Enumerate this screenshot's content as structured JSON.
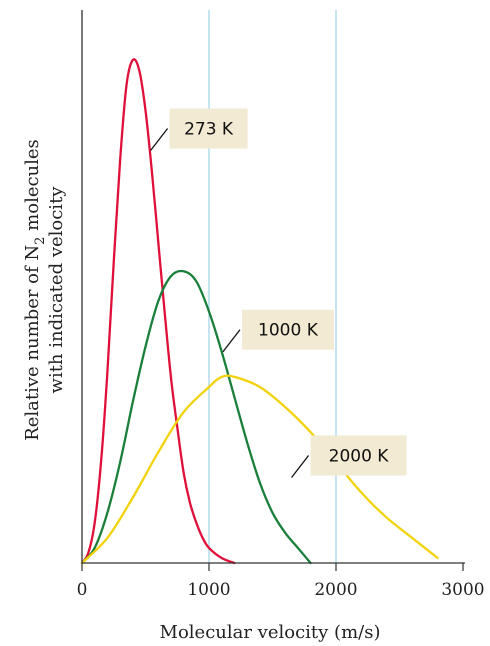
{
  "chart_data": {
    "type": "line",
    "xlabel": "Molecular velocity (m/s)",
    "ylabel": {
      "line1_pre": "Relative number of N",
      "line1_sub": "2",
      "line1_post": " molecules",
      "line2": "with indicated velocity"
    },
    "xlim": [
      0,
      3000
    ],
    "ylim": [
      0,
      1
    ],
    "x_ticks": [
      0,
      1000,
      2000,
      3000
    ],
    "x_tick_labels": [
      "0",
      "1000",
      "2000",
      "3000"
    ],
    "gridlines_x": [
      1000,
      2000
    ],
    "grid_color": "#9fd3e8",
    "series": [
      {
        "name": "273 K",
        "color": "#e0103a",
        "points": [
          [
            0,
            0
          ],
          [
            50,
            0.02
          ],
          [
            100,
            0.08
          ],
          [
            150,
            0.2
          ],
          [
            200,
            0.38
          ],
          [
            250,
            0.6
          ],
          [
            300,
            0.8
          ],
          [
            350,
            0.95
          ],
          [
            400,
            1.0
          ],
          [
            450,
            0.98
          ],
          [
            500,
            0.9
          ],
          [
            550,
            0.78
          ],
          [
            600,
            0.64
          ],
          [
            650,
            0.5
          ],
          [
            700,
            0.37
          ],
          [
            750,
            0.27
          ],
          [
            800,
            0.18
          ],
          [
            850,
            0.12
          ],
          [
            900,
            0.08
          ],
          [
            950,
            0.05
          ],
          [
            1000,
            0.03
          ],
          [
            1100,
            0.01
          ],
          [
            1200,
            0.0
          ]
        ]
      },
      {
        "name": "1000 K",
        "color": "#1a7f3a",
        "points": [
          [
            0,
            0
          ],
          [
            100,
            0.03
          ],
          [
            200,
            0.1
          ],
          [
            300,
            0.2
          ],
          [
            400,
            0.32
          ],
          [
            500,
            0.43
          ],
          [
            600,
            0.52
          ],
          [
            700,
            0.57
          ],
          [
            800,
            0.58
          ],
          [
            900,
            0.56
          ],
          [
            1000,
            0.5
          ],
          [
            1100,
            0.42
          ],
          [
            1200,
            0.33
          ],
          [
            1300,
            0.24
          ],
          [
            1400,
            0.16
          ],
          [
            1500,
            0.1
          ],
          [
            1600,
            0.06
          ],
          [
            1700,
            0.03
          ],
          [
            1800,
            0.0
          ]
        ]
      },
      {
        "name": "2000 K",
        "color": "#f2d20a",
        "points": [
          [
            0,
            0
          ],
          [
            200,
            0.05
          ],
          [
            400,
            0.13
          ],
          [
            600,
            0.22
          ],
          [
            800,
            0.3
          ],
          [
            1000,
            0.35
          ],
          [
            1100,
            0.37
          ],
          [
            1200,
            0.37
          ],
          [
            1400,
            0.35
          ],
          [
            1600,
            0.31
          ],
          [
            1800,
            0.26
          ],
          [
            2000,
            0.2
          ],
          [
            2200,
            0.14
          ],
          [
            2400,
            0.09
          ],
          [
            2600,
            0.05
          ],
          [
            2800,
            0.01
          ]
        ]
      }
    ],
    "annotations": [
      {
        "text": "273 K",
        "series": "273 K",
        "anchor_x": 540,
        "anchor_y": 0.82
      },
      {
        "text": "1000 K",
        "series": "1000 K",
        "anchor_x": 1110,
        "anchor_y": 0.42
      },
      {
        "text": "2000 K",
        "series": "2000 K",
        "anchor_x": 1650,
        "anchor_y": 0.17
      }
    ],
    "label_box_color": "#f3ead3",
    "legend": "none"
  }
}
